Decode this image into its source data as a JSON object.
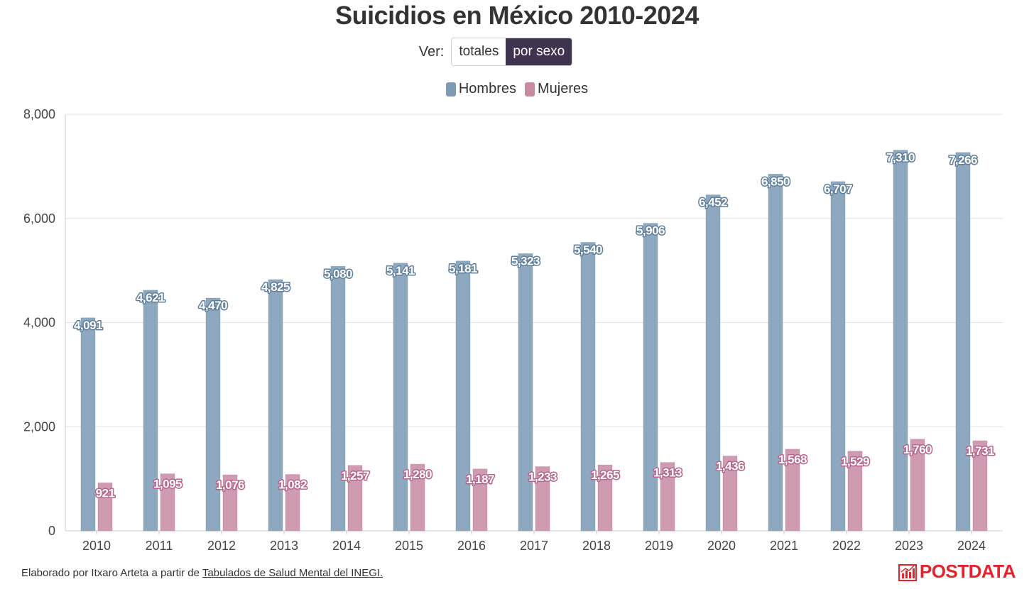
{
  "title": "Suicidios en México 2010-2024",
  "controls": {
    "ver_label": "Ver:",
    "option_totales": "totales",
    "option_por_sexo": "por sexo",
    "selected": "por sexo"
  },
  "legend": [
    {
      "name": "Hombres",
      "color": "#7f9bb4"
    },
    {
      "name": "Mujeres",
      "color": "#c68aa1"
    }
  ],
  "chart_data": {
    "type": "bar",
    "title": "Suicidios en México 2010-2024",
    "xlabel": "",
    "ylabel": "",
    "ylim": [
      0,
      8000
    ],
    "yticks": [
      0,
      2000,
      4000,
      6000,
      8000
    ],
    "ytick_labels": [
      "0",
      "2,000",
      "4,000",
      "6,000",
      "8,000"
    ],
    "grid": true,
    "legend_position": "top-center",
    "categories": [
      "2010",
      "2011",
      "2012",
      "2013",
      "2014",
      "2015",
      "2016",
      "2017",
      "2018",
      "2019",
      "2020",
      "2021",
      "2022",
      "2023",
      "2024"
    ],
    "series": [
      {
        "name": "Hombres",
        "color": "#8ea9bf",
        "label_color": "#5f7e99",
        "values": [
          4091,
          4621,
          4470,
          4825,
          5080,
          5141,
          5181,
          5323,
          5540,
          5906,
          6452,
          6850,
          6707,
          7310,
          7266
        ],
        "labels": [
          "4,091",
          "4,621",
          "4,470",
          "4,825",
          "5,080",
          "5,141",
          "5,181",
          "5,323",
          "5,540",
          "5,906",
          "6,452",
          "6,850",
          "6,707",
          "7,310",
          "7,266"
        ]
      },
      {
        "name": "Mujeres",
        "color": "#cf9bb0",
        "label_color": "#b4658a",
        "values": [
          921,
          1095,
          1076,
          1082,
          1257,
          1280,
          1187,
          1233,
          1265,
          1313,
          1436,
          1568,
          1529,
          1760,
          1731
        ],
        "labels": [
          "921",
          "1,095",
          "1,076",
          "1,082",
          "1,257",
          "1,280",
          "1,187",
          "1,233",
          "1,265",
          "1,313",
          "1,436",
          "1,568",
          "1,529",
          "1,760",
          "1,731"
        ]
      }
    ]
  },
  "footer": {
    "prefix": "Elaborado por Itxaro Arteta a partir de ",
    "link_text": "Tabulados de Salud Mental del INEGI."
  },
  "brand": {
    "name": "POSTDATA",
    "icon": "bar-chart-logo-icon",
    "color": "#e4232e"
  }
}
